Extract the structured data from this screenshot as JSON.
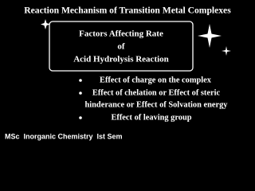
{
  "title": "Reaction Mechanism of Transition Metal Complexes",
  "box": {
    "lines": [
      "Factors Affecting Rate",
      "of",
      "Acid Hydrolysis Reaction"
    ]
  },
  "bullets": [
    {
      "lines": [
        "Effect of charge on the complex"
      ]
    },
    {
      "lines": [
        "Effect of chelation or Effect of steric",
        "hinderance or Effect of Solvation energy"
      ]
    },
    {
      "lines": [
        "Effect of leaving group"
      ]
    }
  ],
  "footer": "MSc  Inorganic Chemistry  Ist Sem"
}
